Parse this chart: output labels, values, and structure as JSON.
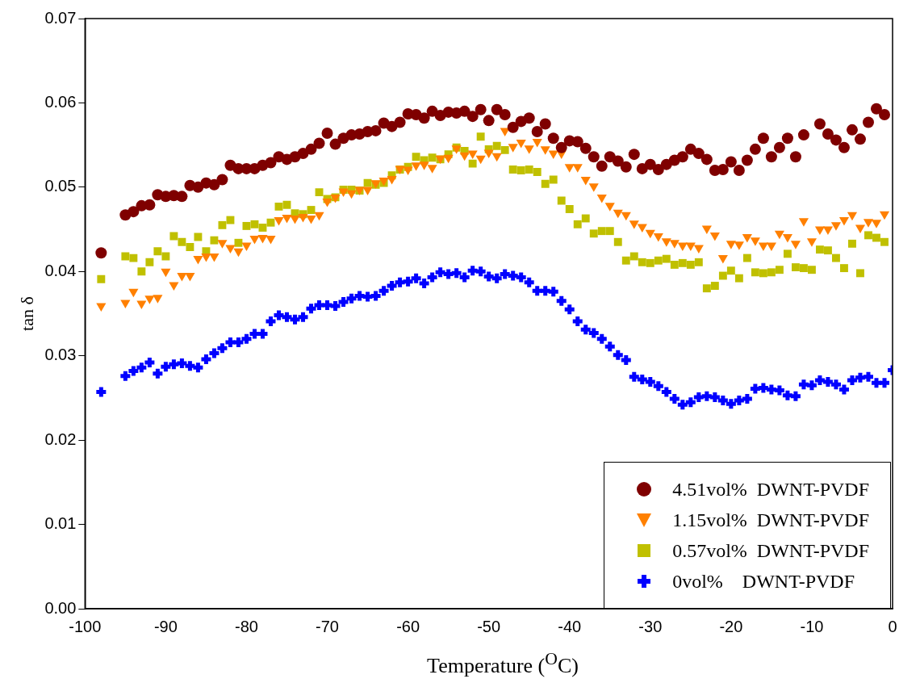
{
  "chart_data": {
    "type": "scatter",
    "xlabel": "Temperature ($^{O}$C)",
    "ylabel": "tan δ",
    "xlim": [
      -100,
      0
    ],
    "xticks": [
      -100,
      -90,
      -80,
      -70,
      -60,
      -50,
      -40,
      -30,
      -20,
      -10,
      0
    ],
    "ylim": [
      0,
      0.07
    ],
    "yticks": [
      {
        "value": 0,
        "label": "0.00"
      },
      {
        "value": 0.01,
        "label": "0.01"
      },
      {
        "value": 0.02,
        "label": "0.02"
      },
      {
        "value": 0.03,
        "label": "0.03"
      },
      {
        "value": 0.04,
        "label": "0.04"
      },
      {
        "value": 0.05,
        "label": "0.05"
      },
      {
        "value": 0.06,
        "label": "0.06"
      },
      {
        "value": 0.07,
        "label": "0.07"
      }
    ],
    "grid": false,
    "legend": "bottom right",
    "series": [
      {
        "name": "4.51vol%  DWNT-PVDF",
        "color": "#7f0000",
        "marker": "circle",
        "x": [
          -98,
          -95,
          -94,
          -93,
          -92,
          -91,
          -90,
          -89,
          -88,
          -87,
          -86,
          -85,
          -84,
          -83,
          -82,
          -81,
          -80,
          -79,
          -78,
          -77,
          -76,
          -75,
          -74,
          -73,
          -72,
          -71,
          -70,
          -69,
          -68,
          -67,
          -66,
          -65,
          -64,
          -63,
          -62,
          -61,
          -60,
          -59,
          -58,
          -57,
          -56,
          -55,
          -54,
          -53,
          -52,
          -51,
          -50,
          -49,
          -48,
          -47,
          -46,
          -45,
          -44,
          -43,
          -42,
          -41,
          -40,
          -39,
          -38,
          -37,
          -36,
          -35,
          -34,
          -33,
          -32,
          -31,
          -30,
          -29,
          -28,
          -27,
          -26,
          -25,
          -24,
          -23,
          -22,
          -21,
          -20,
          -19,
          -18,
          -17,
          -16,
          -15,
          -14,
          -13,
          -12,
          -11,
          -9,
          -8,
          -7,
          -6,
          -5,
          -4,
          -3,
          -2,
          -1
        ],
        "values": [
          0.0422,
          0.0467,
          0.0471,
          0.0478,
          0.0479,
          0.0491,
          0.0489,
          0.049,
          0.0489,
          0.0502,
          0.05,
          0.0505,
          0.0503,
          0.0509,
          0.0526,
          0.0522,
          0.0522,
          0.0522,
          0.0526,
          0.0529,
          0.0536,
          0.0533,
          0.0536,
          0.054,
          0.0545,
          0.0552,
          0.0564,
          0.0551,
          0.0558,
          0.0562,
          0.0563,
          0.0566,
          0.0567,
          0.0576,
          0.0572,
          0.0577,
          0.0587,
          0.0586,
          0.0582,
          0.059,
          0.0585,
          0.0589,
          0.0588,
          0.059,
          0.0584,
          0.0592,
          0.0579,
          0.0592,
          0.0586,
          0.0571,
          0.0578,
          0.0582,
          0.0566,
          0.0575,
          0.0558,
          0.0547,
          0.0555,
          0.0554,
          0.0546,
          0.0536,
          0.0525,
          0.0536,
          0.0531,
          0.0524,
          0.0539,
          0.0522,
          0.0527,
          0.0521,
          0.0527,
          0.0532,
          0.0536,
          0.0545,
          0.054,
          0.0533,
          0.052,
          0.0521,
          0.053,
          0.052,
          0.0532,
          0.0545,
          0.0558,
          0.0536,
          0.0547,
          0.0558,
          0.0536,
          0.0562,
          0.0575,
          0.0563,
          0.0556,
          0.0547,
          0.0568,
          0.0557,
          0.0577,
          0.0593,
          0.0586
        ]
      },
      {
        "name": "1.15vol%  DWNT-PVDF",
        "color": "#ff8000",
        "marker": "triangle",
        "x": [
          -98,
          -95,
          -94,
          -93,
          -92,
          -91,
          -90,
          -89,
          -88,
          -87,
          -86,
          -85,
          -84,
          -83,
          -82,
          -81,
          -80,
          -79,
          -78,
          -77,
          -76,
          -75,
          -74,
          -73,
          -72,
          -71,
          -70,
          -69,
          -68,
          -67,
          -66,
          -65,
          -64,
          -63,
          -62,
          -61,
          -60,
          -59,
          -58,
          -57,
          -56,
          -55,
          -54,
          -53,
          -52,
          -51,
          -50,
          -49,
          -48,
          -47,
          -46,
          -45,
          -44,
          -43,
          -42,
          -41,
          -40,
          -39,
          -38,
          -37,
          -36,
          -35,
          -34,
          -33,
          -32,
          -31,
          -30,
          -29,
          -28,
          -27,
          -26,
          -25,
          -24,
          -23,
          -22,
          -21,
          -20,
          -19,
          -18,
          -17,
          -16,
          -15,
          -14,
          -13,
          -12,
          -11,
          -10,
          -9,
          -8,
          -7,
          -6,
          -5,
          -4,
          -3,
          -2,
          -1
        ],
        "values": [
          0.0359,
          0.0363,
          0.0376,
          0.0362,
          0.0368,
          0.0369,
          0.04,
          0.0384,
          0.0395,
          0.0395,
          0.0415,
          0.0418,
          0.0418,
          0.0434,
          0.0428,
          0.0424,
          0.0431,
          0.0439,
          0.044,
          0.0439,
          0.0461,
          0.0464,
          0.0463,
          0.0465,
          0.0463,
          0.0467,
          0.0483,
          0.0488,
          0.0495,
          0.0493,
          0.0497,
          0.0497,
          0.0505,
          0.0508,
          0.051,
          0.0522,
          0.0521,
          0.0526,
          0.0527,
          0.0523,
          0.0534,
          0.0535,
          0.0546,
          0.0538,
          0.054,
          0.0534,
          0.0541,
          0.0537,
          0.0567,
          0.0548,
          0.0553,
          0.0546,
          0.0554,
          0.0545,
          0.054,
          0.054,
          0.0524,
          0.0524,
          0.0509,
          0.0501,
          0.0488,
          0.0478,
          0.047,
          0.0467,
          0.0457,
          0.0453,
          0.0446,
          0.0442,
          0.0436,
          0.0434,
          0.0431,
          0.0431,
          0.0428,
          0.0451,
          0.0443,
          0.0416,
          0.0433,
          0.0432,
          0.0441,
          0.0437,
          0.0431,
          0.0431,
          0.0445,
          0.0441,
          0.0433,
          0.046,
          0.0436,
          0.045,
          0.045,
          0.0455,
          0.0461,
          0.0467,
          0.0452,
          0.0459,
          0.0458,
          0.0468
        ]
      },
      {
        "name": "0.57vol%  DWNT-PVDF",
        "color": "#c0c000",
        "marker": "square",
        "x": [
          -98,
          -95,
          -94,
          -93,
          -92,
          -91,
          -90,
          -89,
          -88,
          -87,
          -86,
          -85,
          -84,
          -83,
          -82,
          -81,
          -80,
          -79,
          -78,
          -77,
          -76,
          -75,
          -74,
          -73,
          -72,
          -71,
          -70,
          -69,
          -68,
          -67,
          -66,
          -65,
          -64,
          -63,
          -62,
          -61,
          -60,
          -59,
          -58,
          -57,
          -56,
          -55,
          -54,
          -53,
          -52,
          -51,
          -50,
          -49,
          -48,
          -47,
          -46,
          -45,
          -44,
          -43,
          -42,
          -41,
          -40,
          -39,
          -38,
          -37,
          -36,
          -35,
          -34,
          -33,
          -32,
          -31,
          -30,
          -29,
          -28,
          -27,
          -26,
          -25,
          -24,
          -23,
          -22,
          -21,
          -20,
          -19,
          -18,
          -17,
          -16,
          -15,
          -14,
          -13,
          -12,
          -11,
          -10,
          -9,
          -8,
          -7,
          -6,
          -5,
          -4,
          -3,
          -2,
          -1
        ],
        "values": [
          0.0391,
          0.0418,
          0.0416,
          0.04,
          0.0411,
          0.0424,
          0.0418,
          0.0442,
          0.0435,
          0.0429,
          0.0441,
          0.0424,
          0.0437,
          0.0455,
          0.0461,
          0.0434,
          0.0454,
          0.0456,
          0.0452,
          0.0458,
          0.0477,
          0.0479,
          0.0469,
          0.0468,
          0.0473,
          0.0494,
          0.0486,
          0.0488,
          0.0497,
          0.0497,
          0.0496,
          0.0505,
          0.0503,
          0.0505,
          0.0514,
          0.0521,
          0.0524,
          0.0536,
          0.0532,
          0.0535,
          0.0533,
          0.0539,
          0.0547,
          0.0543,
          0.0528,
          0.056,
          0.0545,
          0.0549,
          0.0544,
          0.0521,
          0.052,
          0.0521,
          0.0518,
          0.0504,
          0.0509,
          0.0484,
          0.0474,
          0.0456,
          0.0463,
          0.0445,
          0.0448,
          0.0448,
          0.0435,
          0.0413,
          0.0418,
          0.0411,
          0.041,
          0.0413,
          0.0415,
          0.0408,
          0.041,
          0.0408,
          0.0411,
          0.038,
          0.0383,
          0.0395,
          0.0401,
          0.0392,
          0.0416,
          0.0399,
          0.0398,
          0.0399,
          0.0402,
          0.0421,
          0.0405,
          0.0404,
          0.0402,
          0.0426,
          0.0425,
          0.0416,
          0.0404,
          0.0433,
          0.0398,
          0.0443,
          0.044,
          0.0435
        ]
      },
      {
        "name": "0vol%    DWNT-PVDF",
        "color": "#0000ff",
        "marker": "cross",
        "x": [
          -98,
          -95,
          -94,
          -93,
          -92,
          -91,
          -90,
          -89,
          -88,
          -87,
          -86,
          -85,
          -84,
          -83,
          -82,
          -81,
          -80,
          -79,
          -78,
          -77,
          -76,
          -75,
          -74,
          -73,
          -72,
          -71,
          -70,
          -69,
          -68,
          -67,
          -66,
          -65,
          -64,
          -63,
          -62,
          -61,
          -60,
          -59,
          -58,
          -57,
          -56,
          -55,
          -54,
          -53,
          -52,
          -51,
          -50,
          -49,
          -48,
          -47,
          -46,
          -45,
          -44,
          -43,
          -42,
          -41,
          -40,
          -39,
          -38,
          -37,
          -36,
          -35,
          -34,
          -33,
          -32,
          -31,
          -30,
          -29,
          -28,
          -27,
          -26,
          -25,
          -24,
          -23,
          -22,
          -21,
          -20,
          -19,
          -18,
          -17,
          -16,
          -15,
          -14,
          -13,
          -12,
          -11,
          -10,
          -9,
          -8,
          -7,
          -6,
          -5,
          -4,
          -3,
          -2,
          -1,
          0
        ],
        "values": [
          0.0257,
          0.0276,
          0.0282,
          0.0286,
          0.0292,
          0.0279,
          0.0287,
          0.029,
          0.0291,
          0.0288,
          0.0286,
          0.0296,
          0.0303,
          0.0309,
          0.0316,
          0.0316,
          0.032,
          0.0326,
          0.0326,
          0.0341,
          0.0348,
          0.0346,
          0.0343,
          0.0346,
          0.0356,
          0.036,
          0.036,
          0.0359,
          0.0364,
          0.0368,
          0.0371,
          0.037,
          0.0371,
          0.0377,
          0.0383,
          0.0387,
          0.0388,
          0.0392,
          0.0386,
          0.0393,
          0.0399,
          0.0397,
          0.0398,
          0.0393,
          0.0401,
          0.04,
          0.0394,
          0.0392,
          0.0397,
          0.0395,
          0.0393,
          0.0387,
          0.0377,
          0.0377,
          0.0376,
          0.0365,
          0.0355,
          0.0341,
          0.0331,
          0.0327,
          0.032,
          0.0311,
          0.0301,
          0.0295,
          0.0275,
          0.0272,
          0.0269,
          0.0264,
          0.0257,
          0.0249,
          0.0242,
          0.0245,
          0.0251,
          0.0252,
          0.0251,
          0.0247,
          0.0243,
          0.0247,
          0.0249,
          0.0261,
          0.0262,
          0.026,
          0.0259,
          0.0253,
          0.0252,
          0.0266,
          0.0265,
          0.0271,
          0.0269,
          0.0266,
          0.026,
          0.0271,
          0.0274,
          0.0275,
          0.0268,
          0.0268,
          0.0283
        ]
      }
    ]
  }
}
